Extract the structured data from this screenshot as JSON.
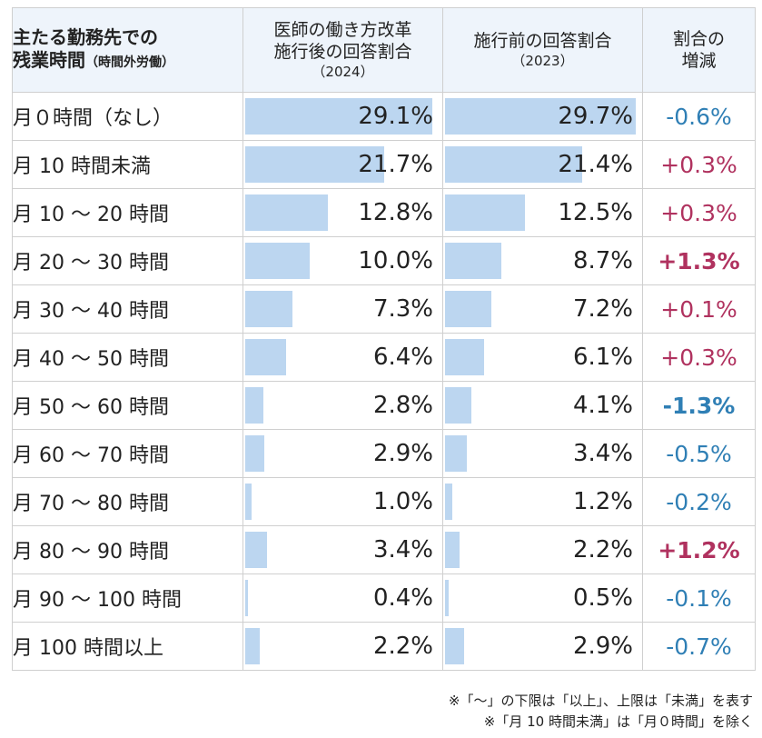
{
  "header": {
    "col1_line1": "主たる勤務先での",
    "col1_line2": "残業時間",
    "col1_line2_sub": "（時間外労働）",
    "col2_line1": "医師の働き方改革",
    "col2_line2": "施行後の回答割合",
    "col2_line3": "（2024）",
    "col3_line1": "施行前の回答割合",
    "col3_line2": "（2023）",
    "col4_line1": "割合の",
    "col4_line2": "増減"
  },
  "chart_data": {
    "type": "table",
    "colors": {
      "bar": "#bcd6f0",
      "positive": "#b0325f",
      "negative": "#2f7fb5"
    },
    "rows": [
      {
        "label": "月０時間（なし）",
        "v2024": 29.1,
        "v2023": 29.7,
        "t2024": "29.1%",
        "t2023": "29.7%",
        "diff": "-0.6%",
        "sign": "neg",
        "bold": false
      },
      {
        "label": "月 10 時間未満",
        "v2024": 21.7,
        "v2023": 21.4,
        "t2024": "21.7%",
        "t2023": "21.4%",
        "diff": "+0.3%",
        "sign": "pos",
        "bold": false
      },
      {
        "label": "月 10 〜 20 時間",
        "v2024": 12.8,
        "v2023": 12.5,
        "t2024": "12.8%",
        "t2023": "12.5%",
        "diff": "+0.3%",
        "sign": "pos",
        "bold": false
      },
      {
        "label": "月 20 〜 30 時間",
        "v2024": 10.0,
        "v2023": 8.7,
        "t2024": "10.0%",
        "t2023": "8.7%",
        "diff": "+1.3%",
        "sign": "pos",
        "bold": true
      },
      {
        "label": "月 30 〜 40 時間",
        "v2024": 7.3,
        "v2023": 7.2,
        "t2024": "7.3%",
        "t2023": "7.2%",
        "diff": "+0.1%",
        "sign": "pos",
        "bold": false
      },
      {
        "label": "月 40 〜 50 時間",
        "v2024": 6.4,
        "v2023": 6.1,
        "t2024": "6.4%",
        "t2023": "6.1%",
        "diff": "+0.3%",
        "sign": "pos",
        "bold": false
      },
      {
        "label": "月 50 〜 60 時間",
        "v2024": 2.8,
        "v2023": 4.1,
        "t2024": "2.8%",
        "t2023": "4.1%",
        "diff": "-1.3%",
        "sign": "neg",
        "bold": true
      },
      {
        "label": "月 60 〜 70 時間",
        "v2024": 2.9,
        "v2023": 3.4,
        "t2024": "2.9%",
        "t2023": "3.4%",
        "diff": "-0.5%",
        "sign": "neg",
        "bold": false
      },
      {
        "label": "月 70 〜 80 時間",
        "v2024": 1.0,
        "v2023": 1.2,
        "t2024": "1.0%",
        "t2023": "1.2%",
        "diff": "-0.2%",
        "sign": "neg",
        "bold": false
      },
      {
        "label": "月 80 〜 90 時間",
        "v2024": 3.4,
        "v2023": 2.2,
        "t2024": "3.4%",
        "t2023": "2.2%",
        "diff": "+1.2%",
        "sign": "pos",
        "bold": true
      },
      {
        "label": "月 90 〜 100 時間",
        "v2024": 0.4,
        "v2023": 0.5,
        "t2024": "0.4%",
        "t2023": "0.5%",
        "diff": "-0.1%",
        "sign": "neg",
        "bold": false
      },
      {
        "label": "月 100 時間以上",
        "v2024": 2.2,
        "v2023": 2.9,
        "t2024": "2.2%",
        "t2023": "2.9%",
        "diff": "-0.7%",
        "sign": "neg",
        "bold": false
      }
    ],
    "bar_max": 29.7
  },
  "notes": {
    "line1": "※「〜」の下限は「以上」、上限は「未満」を表す",
    "line2": "※「月 10 時間未満」は「月０時間」を除く"
  }
}
